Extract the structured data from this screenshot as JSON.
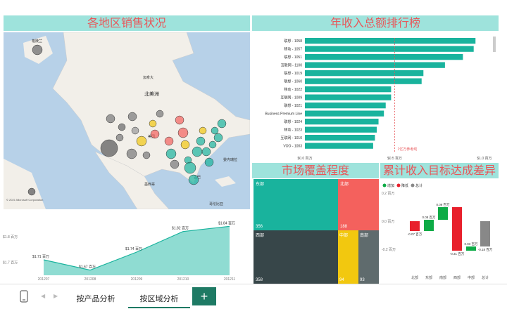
{
  "panels": {
    "sales_map_title": "各地区销售状况",
    "income_rank_title": "年收入总额排行榜",
    "market_title": "市场覆盖程度",
    "target_title": "累计收入目标达成差异"
  },
  "map": {
    "labels": [
      "格陵兰",
      "北美洲",
      "加拿大",
      "美国",
      "墨西哥",
      "古巴",
      "委内瑞拉",
      "哥伦比亚"
    ],
    "attribution": "© 2021 Microsoft Corporation"
  },
  "bar_chart": {
    "categories": [
      "联想 - 1058",
      "移动 - 1057",
      "联想 - 1051",
      "互联网 - 1100",
      "联想 - 1019",
      "联想 - 1060",
      "移动 - 1022",
      "互联网 - 1009",
      "联想 - 1021",
      "Business Premium Line",
      "联想 - 1024",
      "移动 - 1023",
      "互联网 - 1010",
      "VOO - 1003"
    ],
    "values": [
      0.95,
      0.94,
      0.88,
      0.78,
      0.66,
      0.65,
      0.48,
      0.48,
      0.45,
      0.44,
      0.41,
      0.4,
      0.39,
      0.38
    ],
    "xticks": [
      "$0.0 百万",
      "$0.5 百万",
      "$1.0 百万"
    ],
    "ref_label": "1亿万参考线"
  },
  "treemap": {
    "cells": [
      {
        "name": "东部",
        "value": "356",
        "color": "#19b39d"
      },
      {
        "name": "北部",
        "value": "188",
        "color": "#f4615d"
      },
      {
        "name": "西部",
        "value": "358",
        "color": "#374649"
      },
      {
        "name": "中部",
        "value": "94",
        "color": "#f2c80f"
      },
      {
        "name": "南部",
        "value": "93",
        "color": "#5f6b6d"
      }
    ]
  },
  "waterfall": {
    "legend": [
      "增加",
      "降低",
      "总计"
    ],
    "categories": [
      "北部",
      "东部",
      "南部",
      "西部",
      "中部",
      "总计"
    ],
    "values": [
      -0.07,
      0.08,
      0.09,
      -0.31,
      0.03,
      -0.18
    ],
    "value_labels": [
      "-0.07 百万",
      "0.08 百万",
      "0.09 百万",
      "-0.31 百万",
      "0.03 百万",
      "-0.18 百万"
    ],
    "yticks": [
      "0.2 百万",
      "0.0 百万",
      "-0.2 百万"
    ]
  },
  "area_chart": {
    "x": [
      "201207",
      "201208",
      "201209",
      "201210",
      "201211"
    ],
    "values": [
      1.71,
      1.67,
      1.74,
      1.82,
      1.84
    ],
    "labels": [
      "$1.71 百万",
      "$1.67 百万",
      "$1.74 百万",
      "$1.82 百万",
      "$1.84 百万"
    ],
    "yticks": [
      "$1.8 百万",
      "$1.7 百万"
    ]
  },
  "tabs": [
    "按产品分析",
    "按区域分析"
  ],
  "add_label": "+"
}
